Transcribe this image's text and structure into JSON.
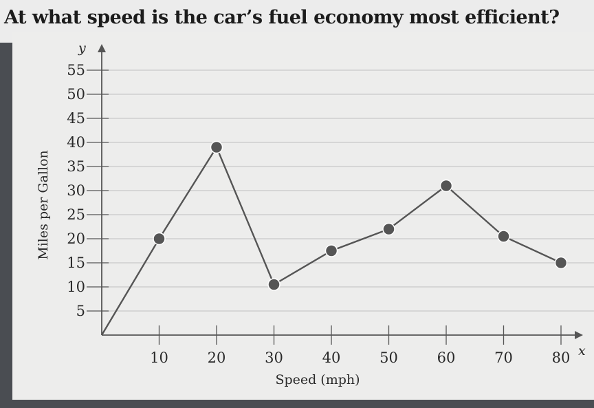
{
  "question": {
    "text": "At what speed is the car’s fuel economy most efficient?"
  },
  "chart_data": {
    "type": "line",
    "title": "",
    "xlabel": "Speed (mph)",
    "ylabel": "Miles per Gallon",
    "x_axis_symbol": "x",
    "y_axis_symbol": "y",
    "x_ticks": [
      10,
      20,
      30,
      40,
      50,
      60,
      70,
      80
    ],
    "y_ticks": [
      5,
      10,
      15,
      20,
      25,
      30,
      35,
      40,
      45,
      50,
      55
    ],
    "xlim": [
      0,
      82
    ],
    "ylim": [
      0,
      57
    ],
    "grid": true,
    "series": [
      {
        "x": [
          0,
          10,
          20,
          30,
          40,
          50,
          60,
          70,
          80
        ],
        "y": [
          0,
          20,
          39,
          10.5,
          17.5,
          22,
          31,
          20.5,
          15
        ],
        "color": "#555555"
      }
    ]
  }
}
